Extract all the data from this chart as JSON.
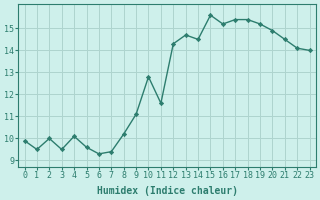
{
  "x": [
    0,
    1,
    2,
    3,
    4,
    5,
    6,
    7,
    8,
    9,
    10,
    11,
    12,
    13,
    14,
    15,
    16,
    17,
    18,
    19,
    20,
    21,
    22,
    23
  ],
  "y": [
    9.9,
    9.5,
    10.0,
    9.5,
    10.1,
    9.6,
    9.3,
    9.4,
    10.2,
    11.1,
    12.8,
    11.6,
    14.3,
    14.7,
    14.5,
    15.6,
    15.2,
    15.4,
    15.4,
    15.2,
    14.9,
    14.5,
    14.1,
    14.0
  ],
  "xlabel": "Humidex (Indice chaleur)",
  "xlim": [
    -0.5,
    23.5
  ],
  "ylim": [
    8.7,
    16.1
  ],
  "yticks": [
    9,
    10,
    11,
    12,
    13,
    14,
    15
  ],
  "xticks": [
    0,
    1,
    2,
    3,
    4,
    5,
    6,
    7,
    8,
    9,
    10,
    11,
    12,
    13,
    14,
    15,
    16,
    17,
    18,
    19,
    20,
    21,
    22,
    23
  ],
  "line_color": "#2d7d6e",
  "marker": "D",
  "marker_size": 2.2,
  "bg_color": "#cef0eb",
  "grid_color": "#aed4ce",
  "tick_fontsize": 6,
  "xlabel_fontsize": 7
}
